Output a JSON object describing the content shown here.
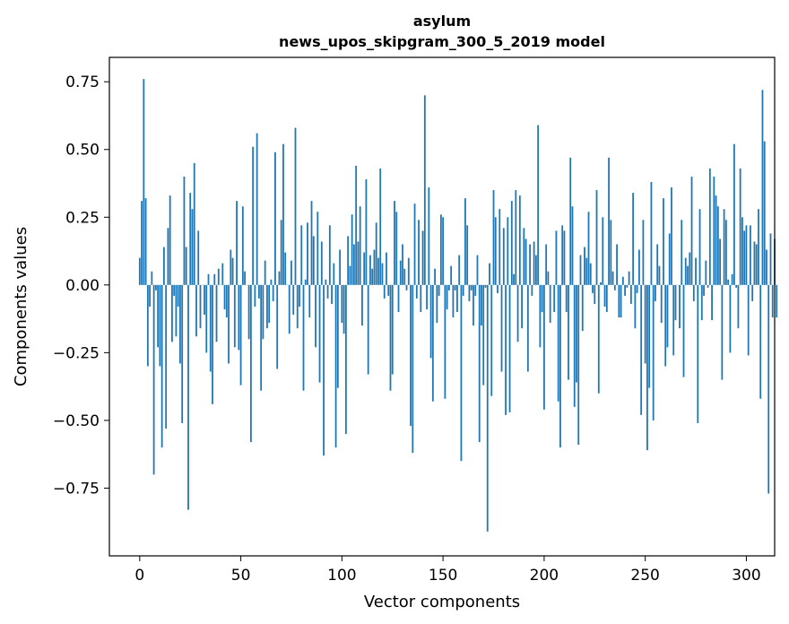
{
  "chart_data": {
    "type": "bar",
    "title_line1": "asylum",
    "title_line2": "news_upos_skipgram_300_5_2019 model",
    "xlabel": "Vector components",
    "ylabel": "Components values",
    "xlim": [
      -15,
      314
    ],
    "ylim": [
      -1.0,
      0.84
    ],
    "xticks": [
      0,
      50,
      100,
      150,
      200,
      250,
      300
    ],
    "xtick_labels": [
      "0",
      "50",
      "100",
      "150",
      "200",
      "250",
      "300"
    ],
    "yticks": [
      0.75,
      0.5,
      0.25,
      0.0,
      -0.25,
      -0.5,
      -0.75
    ],
    "ytick_labels": [
      "0.75",
      "0.50",
      "0.25",
      "0.00",
      "−0.25",
      "−0.50",
      "−0.75"
    ],
    "bar_color": "#1f77b4",
    "values": [
      0.1,
      0.31,
      0.76,
      0.32,
      -0.3,
      -0.08,
      0.05,
      -0.7,
      -0.02,
      -0.23,
      -0.3,
      -0.6,
      0.14,
      -0.53,
      0.21,
      0.33,
      -0.21,
      -0.04,
      -0.19,
      -0.08,
      -0.29,
      -0.51,
      0.4,
      0.14,
      -0.83,
      0.34,
      0.28,
      0.45,
      -0.19,
      0.2,
      -0.16,
      0.0,
      -0.11,
      -0.25,
      0.04,
      -0.32,
      -0.44,
      0.04,
      -0.21,
      0.06,
      0.0,
      0.08,
      -0.09,
      -0.12,
      -0.29,
      0.13,
      0.1,
      -0.23,
      0.31,
      -0.24,
      -0.37,
      0.29,
      0.05,
      0.0,
      -0.2,
      -0.58,
      0.51,
      -0.08,
      0.56,
      -0.05,
      -0.39,
      -0.2,
      0.09,
      -0.16,
      -0.14,
      0.02,
      -0.06,
      0.49,
      -0.31,
      0.05,
      0.24,
      0.52,
      0.12,
      0.0,
      -0.18,
      0.09,
      -0.11,
      0.58,
      -0.16,
      -0.08,
      0.22,
      -0.39,
      0.02,
      0.23,
      -0.12,
      0.31,
      0.18,
      -0.23,
      0.27,
      -0.36,
      0.16,
      -0.63,
      0.02,
      -0.05,
      0.22,
      -0.07,
      0.08,
      -0.6,
      -0.38,
      0.13,
      -0.14,
      -0.18,
      -0.55,
      0.18,
      0.07,
      0.26,
      0.15,
      0.44,
      0.16,
      0.29,
      -0.15,
      0.12,
      0.39,
      -0.33,
      0.11,
      0.06,
      0.13,
      0.23,
      0.1,
      0.43,
      0.08,
      -0.05,
      0.12,
      -0.04,
      -0.39,
      -0.33,
      0.31,
      0.27,
      -0.1,
      0.09,
      0.15,
      0.06,
      -0.02,
      0.1,
      -0.52,
      -0.62,
      0.3,
      -0.05,
      0.24,
      -0.1,
      0.2,
      0.7,
      -0.09,
      0.36,
      -0.27,
      -0.43,
      0.06,
      -0.14,
      -0.04,
      0.26,
      0.25,
      -0.42,
      -0.09,
      -0.02,
      0.07,
      -0.12,
      -0.02,
      -0.1,
      0.11,
      -0.65,
      -0.04,
      0.32,
      0.22,
      -0.06,
      -0.02,
      -0.15,
      -0.04,
      0.11,
      -0.58,
      -0.15,
      -0.37,
      -0.01,
      -0.91,
      0.08,
      -0.41,
      0.35,
      0.25,
      -0.03,
      0.28,
      -0.32,
      0.21,
      -0.48,
      0.25,
      -0.47,
      0.31,
      0.04,
      0.35,
      -0.21,
      0.33,
      -0.16,
      0.21,
      0.17,
      -0.32,
      0.15,
      -0.04,
      0.16,
      0.11,
      0.59,
      -0.23,
      -0.1,
      -0.46,
      0.15,
      0.05,
      -0.14,
      0.0,
      -0.1,
      0.2,
      -0.43,
      -0.6,
      0.22,
      0.2,
      -0.1,
      -0.35,
      0.47,
      0.29,
      -0.45,
      -0.36,
      -0.59,
      0.11,
      -0.17,
      0.14,
      0.1,
      0.27,
      0.08,
      -0.03,
      -0.07,
      0.35,
      -0.4,
      0.01,
      0.25,
      -0.08,
      -0.1,
      0.47,
      0.24,
      0.05,
      -0.02,
      0.15,
      -0.12,
      -0.12,
      0.03,
      -0.04,
      -0.01,
      0.05,
      -0.07,
      0.34,
      -0.16,
      -0.03,
      0.13,
      -0.48,
      0.24,
      -0.29,
      -0.61,
      -0.38,
      0.38,
      -0.5,
      -0.06,
      0.15,
      0.07,
      -0.14,
      0.32,
      -0.3,
      -0.23,
      0.19,
      0.36,
      -0.26,
      -0.13,
      0.0,
      -0.16,
      0.24,
      -0.34,
      0.1,
      0.07,
      0.12,
      0.4,
      -0.06,
      0.1,
      -0.51,
      0.28,
      -0.13,
      -0.04,
      0.09,
      -0.01,
      0.43,
      -0.13,
      0.4,
      0.33,
      0.29,
      0.17,
      -0.35,
      0.28,
      0.24,
      0.02,
      -0.25,
      0.04,
      0.52,
      -0.01,
      -0.16,
      0.43,
      0.25,
      0.2,
      0.22,
      -0.26,
      0.22,
      -0.06,
      0.16,
      0.15,
      0.28,
      -0.42,
      0.72,
      0.53,
      0.13,
      -0.77,
      0.19,
      -0.12,
      0.17,
      -0.12
    ]
  }
}
